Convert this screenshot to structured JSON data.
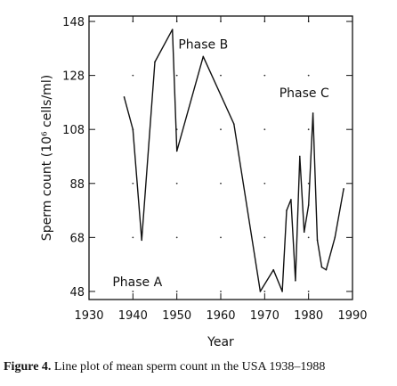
{
  "chart_data": {
    "type": "line",
    "xlabel": "Year",
    "ylabel": "Sperm count (10⁶ cells/ml)",
    "xlim": [
      1930,
      1990
    ],
    "ylim": [
      45,
      150
    ],
    "xticks": [
      1930,
      1940,
      1950,
      1960,
      1970,
      1980,
      1990
    ],
    "yticks": [
      48,
      68,
      88,
      108,
      128,
      148
    ],
    "annotations": [
      {
        "text": "Phase A",
        "x": 1941,
        "y": 50
      },
      {
        "text": "Phase B",
        "x": 1956,
        "y": 138
      },
      {
        "text": "Phase C",
        "x": 1979,
        "y": 120
      }
    ],
    "series": [
      {
        "points": [
          [
            1938,
            120
          ],
          [
            1940,
            108
          ],
          [
            1942,
            67
          ],
          [
            1945,
            133
          ],
          [
            1949,
            145
          ],
          [
            1950,
            100
          ],
          [
            1956,
            135
          ],
          [
            1963,
            110
          ],
          [
            1969,
            48
          ],
          [
            1972,
            56
          ],
          [
            1974,
            48
          ],
          [
            1975,
            78
          ],
          [
            1976,
            82
          ],
          [
            1977,
            52
          ],
          [
            1978,
            98
          ],
          [
            1979,
            70
          ],
          [
            1980,
            80
          ],
          [
            1981,
            114
          ],
          [
            1982,
            67
          ],
          [
            1983,
            57
          ],
          [
            1984,
            56
          ],
          [
            1986,
            68
          ],
          [
            1988,
            86
          ]
        ]
      }
    ]
  },
  "caption": {
    "label": "Figure 4.",
    "text": "Line plot of mean sperm count ın the USA 1938–1988"
  }
}
